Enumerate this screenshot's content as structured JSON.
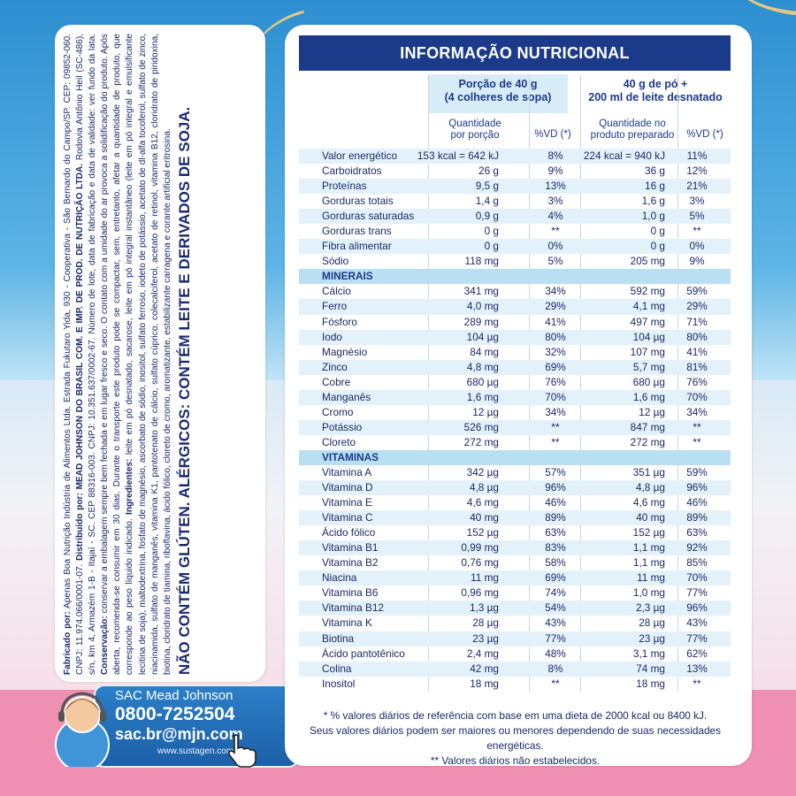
{
  "left_text": {
    "fabricado_label": "Fabricado por:",
    "fabricado": " Apenas Boa Nutrição Indústria de Alimentos Ltda. Estrada Fukutaro Yida, 930 - Cooperativa - São Bernardo do Campo/SP. CEP: 09852-060. CNPJ: 11.974.066/0001-07.",
    "distribuido_label": "Distribuído por:",
    "distribuido": "MEAD JOHNSON DO BRASIL COM. E IMP. DE PROD. DE NUTRIÇÃO LTDA.",
    "endereco": "Rodovia Antônio Heil (SC-486), s/n, km 4, Armazém 1-B - Itajaí - SC. CEP 88316-003. CNPJ: 10.351.637/0002-67. Número de lote, data de fabricação e data de validade: ver fundo da lata.",
    "conservacao_label": "Conservação:",
    "conservacao": "conservar a embalagem sempre bem fechada e em lugar fresco e seco. O contato com a umidade do ar provoca a solidificação do produto. Após aberta, recomenda-se consumir em 30 dias. Durante o transporte este produto pode se compactar, sem, entretanto, afetar a quantidade de produto, que corresponde ao peso líquido indicado.",
    "ingredientes_label": "Ingredientes:",
    "ingredientes": "leite em pó desnatado, sacarose, leite em pó integral instantâneo (leite em pó integral e emulsificante lecitina de soja), maltodextrina, fosfato de magnésio, ascorbato de sódio, inositol, sulfato ferroso, iodeto de potássio, acetato de dl-alfa tocoferol, sulfato de zinco, niacinamida, sulfato de manganês, vitamina K1, pantotenato de cálcio, sulfato cúprico, colecalciferol, acetato de retinol, vitamina B12, cloridrato de piridoxina, biotina, cloridrato de tiamina, riboflavina, ácido fólico, cloreto de cromo, aromatizante, estabilizante carragena e corante artificial eritrosina.",
    "allergen": "NÃO CONTÉM GLÚTEN. ALÉRGICOS: CONTÉM LEITE E DERIVADOS DE SOJA."
  },
  "sac": {
    "title": "SAC Mead Johnson",
    "phone": "0800-7252504",
    "email": "sac.br@mjn.com",
    "website": "www.sustagen.com.br"
  },
  "table": {
    "title": "INFORMAÇÃO NUTRICIONAL",
    "col1_header": "Porção de 40 g\n(4 colheres de sopa)",
    "col1_header_l1": "Porção de 40 g",
    "col1_header_l2": "(4 colheres de sopa)",
    "col2_header_l1": "40 g de pó +",
    "col2_header_l2": "200 ml de leite desnatado",
    "sub_q1_l1": "Quantidade",
    "sub_q1_l2": "por porção",
    "sub_vd1": "%VD (*)",
    "sub_q2_l1": "Quantidade no",
    "sub_q2_l2": "produto preparado",
    "sub_vd2": "%VD (*)",
    "rows": [
      {
        "name": "Valor energético",
        "q": "153 kcal = 642 kJ",
        "vd": "8%",
        "q2": "224 kcal = 940 kJ",
        "vd2": "11%"
      },
      {
        "name": "Carboidratos",
        "q": "26 g",
        "vd": "9%",
        "q2": "36 g",
        "vd2": "12%"
      },
      {
        "name": "Proteínas",
        "q": "9,5 g",
        "vd": "13%",
        "q2": "16 g",
        "vd2": "21%"
      },
      {
        "name": "Gorduras totais",
        "q": "1,4 g",
        "vd": "3%",
        "q2": "1,6 g",
        "vd2": "3%"
      },
      {
        "name": "Gorduras saturadas",
        "q": "0,9 g",
        "vd": "4%",
        "q2": "1,0 g",
        "vd2": "5%"
      },
      {
        "name": "Gorduras trans",
        "q": "0 g",
        "vd": "**",
        "q2": "0 g",
        "vd2": "**"
      },
      {
        "name": "Fibra alimentar",
        "q": "0 g",
        "vd": "0%",
        "q2": "0 g",
        "vd2": "0%"
      },
      {
        "name": "Sódio",
        "q": "118 mg",
        "vd": "5%",
        "q2": "205 mg",
        "vd2": "9%"
      },
      {
        "name": "MINERAIS",
        "section": true
      },
      {
        "name": "Cálcio",
        "q": "341 mg",
        "vd": "34%",
        "q2": "592 mg",
        "vd2": "59%"
      },
      {
        "name": "Ferro",
        "q": "4,0 mg",
        "vd": "29%",
        "q2": "4,1 mg",
        "vd2": "29%"
      },
      {
        "name": "Fósforo",
        "q": "289 mg",
        "vd": "41%",
        "q2": "497 mg",
        "vd2": "71%"
      },
      {
        "name": "Iodo",
        "q": "104 µg",
        "vd": "80%",
        "q2": "104 µg",
        "vd2": "80%"
      },
      {
        "name": "Magnésio",
        "q": "84 mg",
        "vd": "32%",
        "q2": "107 mg",
        "vd2": "41%"
      },
      {
        "name": "Zinco",
        "q": "4,8 mg",
        "vd": "69%",
        "q2": "5,7 mg",
        "vd2": "81%"
      },
      {
        "name": "Cobre",
        "q": "680 µg",
        "vd": "76%",
        "q2": "680 µg",
        "vd2": "76%"
      },
      {
        "name": "Manganês",
        "q": "1,6 mg",
        "vd": "70%",
        "q2": "1,6 mg",
        "vd2": "70%"
      },
      {
        "name": "Cromo",
        "q": "12 µg",
        "vd": "34%",
        "q2": "12 µg",
        "vd2": "34%"
      },
      {
        "name": "Potássio",
        "q": "526 mg",
        "vd": "**",
        "q2": "847 mg",
        "vd2": "**"
      },
      {
        "name": "Cloreto",
        "q": "272 mg",
        "vd": "**",
        "q2": "272 mg",
        "vd2": "**"
      },
      {
        "name": "VITAMINAS",
        "section": true
      },
      {
        "name": "Vitamina A",
        "q": "342 µg",
        "vd": "57%",
        "q2": "351 µg",
        "vd2": "59%"
      },
      {
        "name": "Vitamina D",
        "q": "4,8 µg",
        "vd": "96%",
        "q2": "4,8 µg",
        "vd2": "96%"
      },
      {
        "name": "Vitamina E",
        "q": "4,6 mg",
        "vd": "46%",
        "q2": "4,6 mg",
        "vd2": "46%"
      },
      {
        "name": "Vitamina C",
        "q": "40 mg",
        "vd": "89%",
        "q2": "40 mg",
        "vd2": "89%"
      },
      {
        "name": "Ácido fólico",
        "q": "152 µg",
        "vd": "63%",
        "q2": "152 µg",
        "vd2": "63%"
      },
      {
        "name": "Vitamina B1",
        "q": "0,99 mg",
        "vd": "83%",
        "q2": "1,1 mg",
        "vd2": "92%"
      },
      {
        "name": "Vitamina B2",
        "q": "0,76 mg",
        "vd": "58%",
        "q2": "1,1 mg",
        "vd2": "85%"
      },
      {
        "name": "Niacina",
        "q": "11 mg",
        "vd": "69%",
        "q2": "11 mg",
        "vd2": "70%"
      },
      {
        "name": "Vitamina B6",
        "q": "0,96 mg",
        "vd": "74%",
        "q2": "1,0 mg",
        "vd2": "77%"
      },
      {
        "name": "Vitamina B12",
        "q": "1,3 µg",
        "vd": "54%",
        "q2": "2,3 µg",
        "vd2": "96%"
      },
      {
        "name": "Vitamina K",
        "q": "28 µg",
        "vd": "43%",
        "q2": "28 µg",
        "vd2": "43%"
      },
      {
        "name": "Biotina",
        "q": "23 µg",
        "vd": "77%",
        "q2": "23 µg",
        "vd2": "77%"
      },
      {
        "name": "Ácido pantotênico",
        "q": "2,4 mg",
        "vd": "48%",
        "q2": "3,1 mg",
        "vd2": "62%"
      },
      {
        "name": "Colina",
        "q": "42 mg",
        "vd": "8%",
        "q2": "74 mg",
        "vd2": "13%"
      },
      {
        "name": "Inositol",
        "q": "18 mg",
        "vd": "**",
        "q2": "18 mg",
        "vd2": "**"
      }
    ],
    "note1": "* % valores diários de referência com base em uma dieta de 2000 kcal ou 8400 kJ.",
    "note2": "Seus valores diários podem ser maiores ou menores dependendo de suas necessidades energéticas.",
    "note3": "** Valores diários não estabelecidos."
  },
  "colors": {
    "navy": "#1b3a8a",
    "light_blue_row": "#e3f1fa",
    "section_row": "#b9dff2",
    "pink_bottom": "#ef8fb2",
    "sac_blue": "#1c5fa7"
  }
}
